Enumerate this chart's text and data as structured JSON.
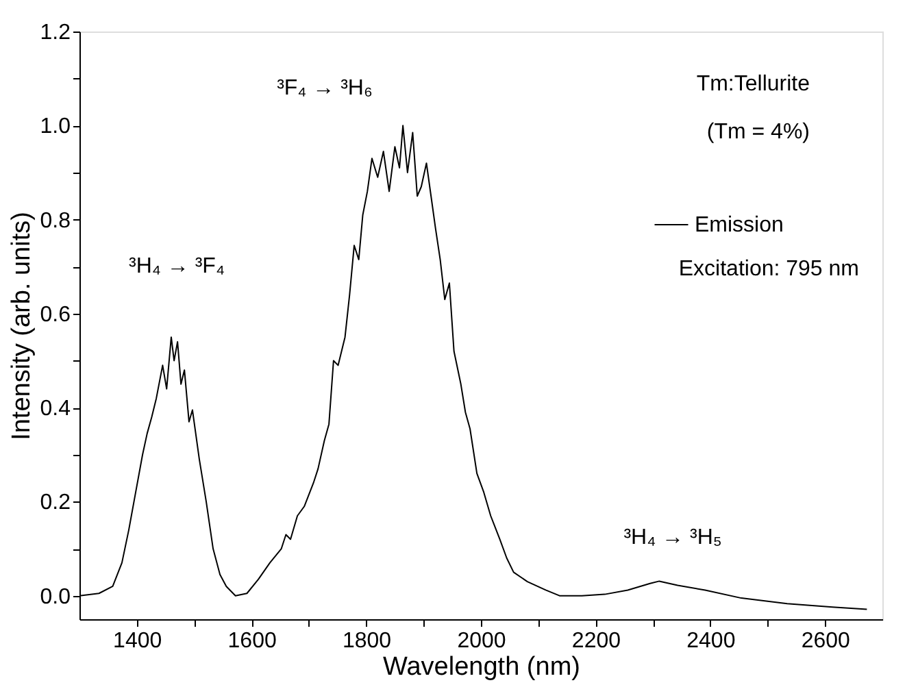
{
  "chart_data": {
    "type": "line",
    "xlabel": "Wavelength (nm)",
    "ylabel": "Intensity (arb. units)",
    "x": [
      1300,
      1334,
      1358,
      1374,
      1386,
      1398,
      1410,
      1418,
      1426,
      1434,
      1445,
      1452,
      1460,
      1465,
      1471,
      1477,
      1483,
      1491,
      1497,
      1509,
      1521,
      1533,
      1545,
      1556,
      1572,
      1592,
      1612,
      1632,
      1652,
      1660,
      1668,
      1680,
      1692,
      1708,
      1716,
      1727,
      1735,
      1743,
      1751,
      1763,
      1771,
      1779,
      1787,
      1794,
      1802,
      1810,
      1820,
      1830,
      1840,
      1850,
      1858,
      1864,
      1872,
      1881,
      1889,
      1896,
      1905,
      1913,
      1921,
      1929,
      1937,
      1945,
      1953,
      1965,
      1973,
      1981,
      1993,
      2005,
      2017,
      2033,
      2045,
      2057,
      2081,
      2113,
      2137,
      2176,
      2216,
      2256,
      2295,
      2311,
      2343,
      2391,
      2454,
      2534,
      2613,
      2673
    ],
    "series": [
      {
        "name": "Emission",
        "color": "#000000",
        "values": [
          0.0,
          0.005,
          0.02,
          0.07,
          0.14,
          0.22,
          0.3,
          0.345,
          0.38,
          0.42,
          0.49,
          0.44,
          0.55,
          0.5,
          0.54,
          0.45,
          0.48,
          0.37,
          0.395,
          0.29,
          0.2,
          0.1,
          0.045,
          0.02,
          0.0,
          0.005,
          0.035,
          0.07,
          0.1,
          0.13,
          0.12,
          0.17,
          0.19,
          0.24,
          0.27,
          0.33,
          0.365,
          0.5,
          0.49,
          0.55,
          0.64,
          0.745,
          0.715,
          0.81,
          0.86,
          0.93,
          0.89,
          0.945,
          0.86,
          0.955,
          0.91,
          1.0,
          0.9,
          0.985,
          0.85,
          0.87,
          0.92,
          0.85,
          0.78,
          0.715,
          0.63,
          0.665,
          0.52,
          0.45,
          0.39,
          0.355,
          0.26,
          0.22,
          0.17,
          0.12,
          0.08,
          0.05,
          0.03,
          0.012,
          0.0,
          0.0,
          0.003,
          0.012,
          0.026,
          0.031,
          0.022,
          0.012,
          -0.005,
          -0.017,
          -0.024,
          -0.029
        ]
      }
    ],
    "xlim": [
      1300,
      2700
    ],
    "xticks": [
      1400,
      {
        "value": 1500,
        "label": null
      },
      1600,
      {
        "value": 1700,
        "label": null
      },
      1800,
      {
        "value": 1900,
        "label": null
      },
      2000,
      {
        "value": 2100,
        "label": null
      },
      2200,
      {
        "value": 2300,
        "label": null
      },
      2400,
      {
        "value": 2500,
        "label": null
      },
      2600
    ],
    "ylim": [
      -0.05,
      1.2
    ],
    "yticks": [
      {
        "value": 0,
        "label": "0.0"
      },
      {
        "value": 0.1,
        "label": null
      },
      {
        "value": 0.2,
        "label": "0.2"
      },
      {
        "value": 0.3,
        "label": null
      },
      {
        "value": 0.4,
        "label": "0.4"
      },
      {
        "value": 0.5,
        "label": null
      },
      {
        "value": 0.6,
        "label": "0.6"
      },
      {
        "value": 0.7,
        "label": null
      },
      {
        "value": 0.8,
        "label": "0.8"
      },
      {
        "value": 0.9,
        "label": null
      },
      {
        "value": 1.0,
        "label": "1.0"
      },
      {
        "value": 1.1,
        "label": null
      },
      {
        "value": 1.2,
        "label": "1.2"
      }
    ],
    "annotations": [
      "³H₄ → ³F₄",
      "³F₄ → ³H₆",
      "³H₄ → ³H₅",
      "Tm:Tellurite",
      "(Tm = 4%)",
      "Excitation: 795 nm"
    ],
    "legend": "top right",
    "grid": false,
    "line_style": "solid",
    "marker": "none"
  }
}
